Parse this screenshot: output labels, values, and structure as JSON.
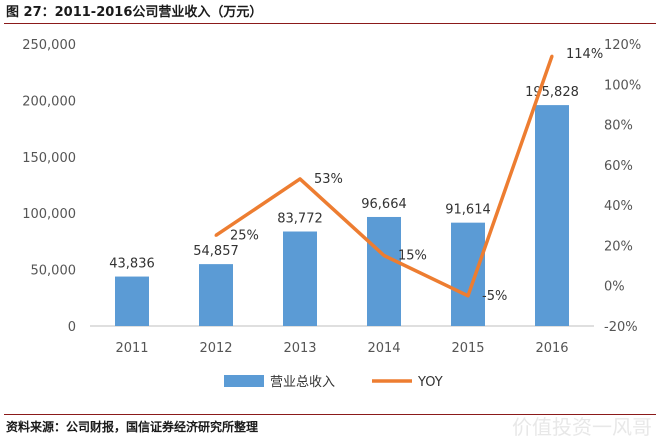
{
  "figure_title": "图 27：2011-2016公司营业收入（万元）",
  "source": "资料来源：公司财报，国信证券经济研究所整理",
  "watermark": "价值投资一风哥",
  "colors": {
    "bar": "#5b9bd5",
    "line": "#ed7d31",
    "rule": "#8b1a1a"
  },
  "chart_data": {
    "type": "bar",
    "categories": [
      "2011",
      "2012",
      "2013",
      "2014",
      "2015",
      "2016"
    ],
    "series": [
      {
        "name": "营业总收入",
        "kind": "bar",
        "axis": "left",
        "values": [
          43836,
          54857,
          83772,
          96664,
          91614,
          195828
        ],
        "labels": [
          "43,836",
          "54,857",
          "83,772",
          "96,664",
          "91,614",
          "195,828"
        ]
      },
      {
        "name": "YOY",
        "kind": "line",
        "axis": "right",
        "values": [
          null,
          25,
          53,
          15,
          -5,
          114
        ],
        "labels": [
          "",
          "25%",
          "53%",
          "15%",
          "-5%",
          "114%"
        ]
      }
    ],
    "ylim_left": [
      0,
      250000
    ],
    "yticks_left": [
      "0",
      "50,000",
      "100,000",
      "150,000",
      "200,000",
      "250,000"
    ],
    "ylim_right": [
      -20,
      120
    ],
    "yticks_right": [
      "-20%",
      "0%",
      "20%",
      "40%",
      "60%",
      "80%",
      "100%",
      "120%"
    ],
    "legend_position": "bottom",
    "grid": false
  }
}
